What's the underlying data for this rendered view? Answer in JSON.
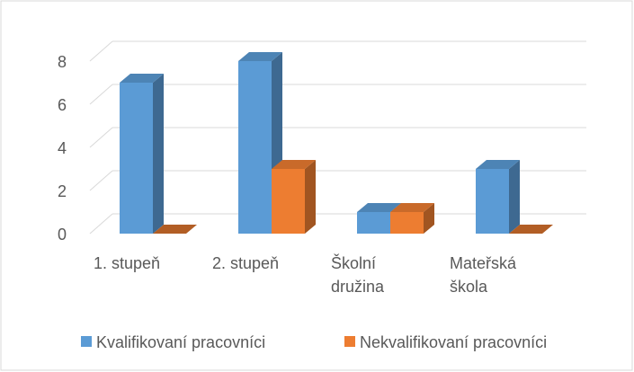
{
  "chart_data": {
    "type": "bar3d",
    "categories": [
      "1. stupeň",
      "2. stupeň",
      "Školní družina",
      "Mateřská škola"
    ],
    "series": [
      {
        "name": "Kvalifikovaní pracovníci",
        "color": "#5b9bd5",
        "values": [
          7,
          8,
          1,
          3
        ]
      },
      {
        "name": "Nekvalifikovaní pracovníci",
        "color": "#ed7d31",
        "values": [
          0,
          3,
          1,
          0
        ]
      }
    ],
    "ylim": [
      0,
      8
    ],
    "yticks": [
      0,
      2,
      4,
      6,
      8
    ],
    "grid": true,
    "legend": "bottom"
  }
}
